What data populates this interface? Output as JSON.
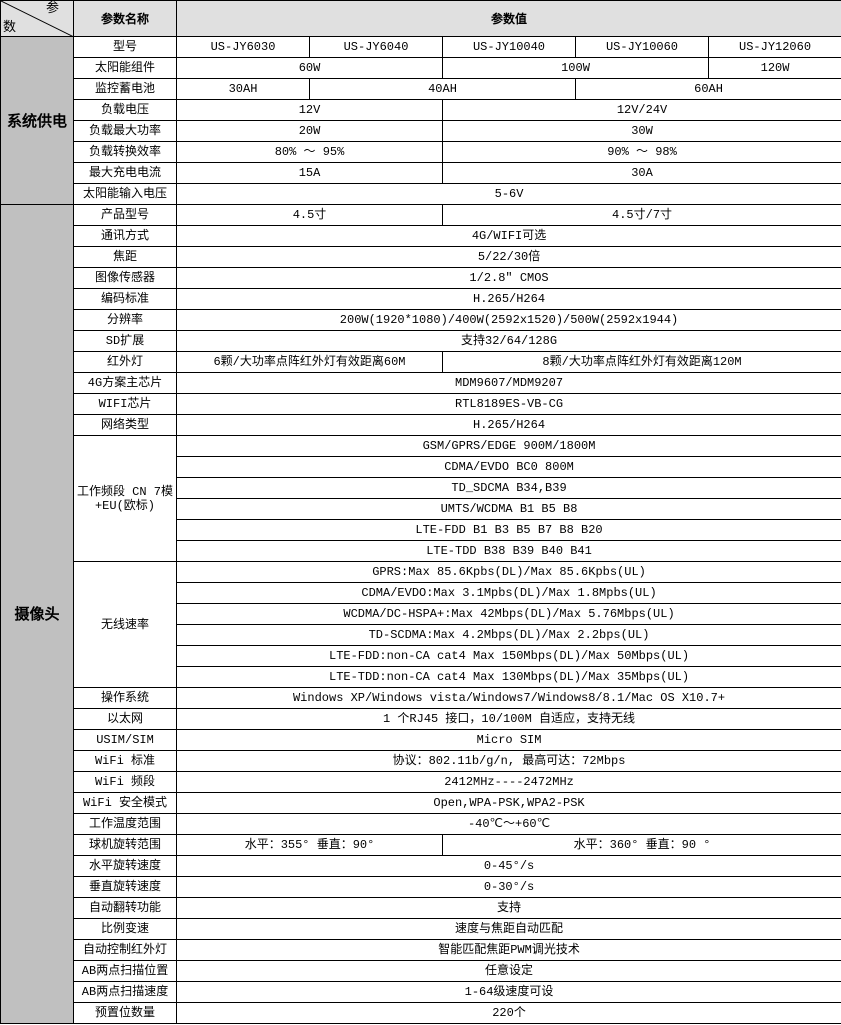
{
  "header": {
    "corner_top": "参",
    "corner_bottom": "数",
    "param_name": "参数名称",
    "param_value": "参数值"
  },
  "colors": {
    "header_bg": "#e0e0e0",
    "group_bg": "#c0c0c0",
    "border": "#000000"
  },
  "groups": [
    {
      "label": "系统供电",
      "rows": [
        {
          "name": "型号",
          "cells": [
            {
              "text": "US-JY6030",
              "span": 1
            },
            {
              "text": "US-JY6040",
              "span": 1
            },
            {
              "text": "US-JY10040",
              "span": 1
            },
            {
              "text": "US-JY10060",
              "span": 1
            },
            {
              "text": "US-JY12060",
              "span": 1
            }
          ]
        },
        {
          "name": "太阳能组件",
          "cells": [
            {
              "text": "60W",
              "span": 2
            },
            {
              "text": "100W",
              "span": 2
            },
            {
              "text": "120W",
              "span": 1
            }
          ]
        },
        {
          "name": "监控蓄电池",
          "cells": [
            {
              "text": "30AH",
              "span": 1
            },
            {
              "text": "40AH",
              "span": 2
            },
            {
              "text": "60AH",
              "span": 2
            }
          ]
        },
        {
          "name": "负载电压",
          "cells": [
            {
              "text": "12V",
              "span": 2
            },
            {
              "text": "12V/24V",
              "span": 3
            }
          ]
        },
        {
          "name": "负载最大功率",
          "cells": [
            {
              "text": "20W",
              "span": 2
            },
            {
              "text": "30W",
              "span": 3
            }
          ]
        },
        {
          "name": "负载转换效率",
          "cells": [
            {
              "text": "80% ～ 95%",
              "span": 2
            },
            {
              "text": "90% ～ 98%",
              "span": 3
            }
          ]
        },
        {
          "name": "最大充电电流",
          "cells": [
            {
              "text": "15A",
              "span": 2
            },
            {
              "text": "30A",
              "span": 3
            }
          ]
        },
        {
          "name": "太阳能输入电压",
          "cells": [
            {
              "text": "5-6V",
              "span": 5
            }
          ]
        }
      ]
    },
    {
      "label": "摄像头",
      "rows": [
        {
          "name": "产品型号",
          "cells": [
            {
              "text": "4.5寸",
              "span": 2
            },
            {
              "text": "4.5寸/7寸",
              "span": 3
            }
          ]
        },
        {
          "name": "通讯方式",
          "cells": [
            {
              "text": "4G/WIFI可选",
              "span": 5
            }
          ]
        },
        {
          "name": "焦距",
          "cells": [
            {
              "text": "5/22/30倍",
              "span": 5
            }
          ]
        },
        {
          "name": "图像传感器",
          "cells": [
            {
              "text": "1/2.8″ CMOS",
              "span": 5
            }
          ]
        },
        {
          "name": "编码标准",
          "cells": [
            {
              "text": "H.265/H264",
              "span": 5
            }
          ]
        },
        {
          "name": "分辨率",
          "cells": [
            {
              "text": "200W(1920*1080)/400W(2592x1520)/500W(2592x1944)",
              "span": 5
            }
          ]
        },
        {
          "name": "SD扩展",
          "cells": [
            {
              "text": "支持32/64/128G",
              "span": 5
            }
          ]
        },
        {
          "name": "红外灯",
          "cells": [
            {
              "text": "6颗/大功率点阵红外灯有效距离60M",
              "span": 2
            },
            {
              "text": "8颗/大功率点阵红外灯有效距离120M",
              "span": 3
            }
          ]
        },
        {
          "name": "4G方案主芯片",
          "cells": [
            {
              "text": "MDM9607/MDM9207",
              "span": 5
            }
          ]
        },
        {
          "name": "WIFI芯片",
          "cells": [
            {
              "text": "RTL8189ES-VB-CG",
              "span": 5
            }
          ]
        },
        {
          "name": "网络类型",
          "cells": [
            {
              "text": "H.265/H264",
              "span": 5
            }
          ]
        },
        {
          "name": "工作频段 CN 7模+EU(欧标)",
          "name_rowspan": 6,
          "cells": [
            {
              "text": "GSM/GPRS/EDGE 900M/1800M",
              "span": 5
            }
          ]
        },
        {
          "cells": [
            {
              "text": "CDMA/EVDO BC0 800M",
              "span": 5
            }
          ]
        },
        {
          "cells": [
            {
              "text": "TD_SDCMA B34,B39",
              "span": 5
            }
          ]
        },
        {
          "cells": [
            {
              "text": "UMTS/WCDMA B1 B5 B8",
              "span": 5
            }
          ]
        },
        {
          "cells": [
            {
              "text": "LTE-FDD B1 B3 B5 B7 B8 B20",
              "span": 5
            }
          ]
        },
        {
          "cells": [
            {
              "text": "LTE-TDD B38 B39 B40 B41",
              "span": 5
            }
          ]
        },
        {
          "name": "无线速率",
          "name_rowspan": 6,
          "cells": [
            {
              "text": "GPRS:Max 85.6Kpbs(DL)/Max 85.6Kpbs(UL)",
              "span": 5
            }
          ]
        },
        {
          "cells": [
            {
              "text": "CDMA/EVDO:Max 3.1Mpbs(DL)/Max 1.8Mpbs(UL)",
              "span": 5
            }
          ]
        },
        {
          "cells": [
            {
              "text": "WCDMA/DC-HSPA+:Max 42Mbps(DL)/Max 5.76Mbps(UL)",
              "span": 5
            }
          ]
        },
        {
          "cells": [
            {
              "text": "TD-SCDMA:Max 4.2Mbps(DL)/Max 2.2bps(UL)",
              "span": 5
            }
          ]
        },
        {
          "cells": [
            {
              "text": "LTE-FDD:non-CA cat4 Max 150Mbps(DL)/Max 50Mbps(UL)",
              "span": 5
            }
          ]
        },
        {
          "cells": [
            {
              "text": "LTE-TDD:non-CA cat4 Max 130Mbps(DL)/Max 35Mbps(UL)",
              "span": 5
            }
          ]
        },
        {
          "name": "操作系统",
          "cells": [
            {
              "text": "Windows XP/Windows vista/Windows7/Windows8/8.1/Mac OS X10.7+",
              "span": 5
            }
          ]
        },
        {
          "name": "以太网",
          "cells": [
            {
              "text": "1 个RJ45 接口，10/100M 自适应，支持无线",
              "span": 5
            }
          ]
        },
        {
          "name": "USIM/SIM",
          "cells": [
            {
              "text": "Micro SIM",
              "span": 5
            }
          ]
        },
        {
          "name": "WiFi 标准",
          "cells": [
            {
              "text": "协议：802.11b/g/n, 最高可达：72Mbps",
              "span": 5
            }
          ]
        },
        {
          "name": "WiFi 频段",
          "cells": [
            {
              "text": "2412MHz----2472MHz",
              "span": 5
            }
          ]
        },
        {
          "name": "WiFi 安全模式",
          "cells": [
            {
              "text": "Open,WPA-PSK,WPA2-PSK",
              "span": 5
            }
          ]
        },
        {
          "name": "工作温度范围",
          "cells": [
            {
              "text": "-40℃～+60℃",
              "span": 5
            }
          ]
        },
        {
          "name": "球机旋转范围",
          "cells": [
            {
              "text": "水平：355° 垂直：90°",
              "span": 2
            },
            {
              "text": "水平：360° 垂直：90 °",
              "span": 3
            }
          ]
        },
        {
          "name": "水平旋转速度",
          "cells": [
            {
              "text": "0-45°/s",
              "span": 5
            }
          ]
        },
        {
          "name": "垂直旋转速度",
          "cells": [
            {
              "text": "0-30°/s",
              "span": 5
            }
          ]
        },
        {
          "name": "自动翻转功能",
          "cells": [
            {
              "text": "支持",
              "span": 5
            }
          ]
        },
        {
          "name": "比例变速",
          "cells": [
            {
              "text": "速度与焦距自动匹配",
              "span": 5
            }
          ]
        },
        {
          "name": "自动控制红外灯",
          "cells": [
            {
              "text": "智能匹配焦距PWM调光技术",
              "span": 5
            }
          ]
        },
        {
          "name": "AB两点扫描位置",
          "cells": [
            {
              "text": "任意设定",
              "span": 5
            }
          ]
        },
        {
          "name": "AB两点扫描速度",
          "cells": [
            {
              "text": "1-64级速度可设",
              "span": 5
            }
          ]
        },
        {
          "name": "预置位数量",
          "cells": [
            {
              "text": "220个",
              "span": 5
            }
          ]
        }
      ]
    }
  ]
}
